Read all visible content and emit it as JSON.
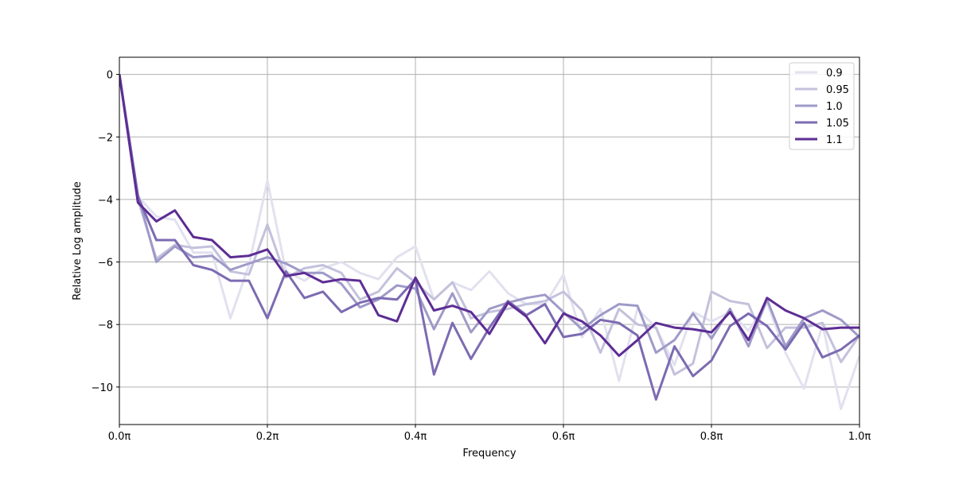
{
  "chart_data": {
    "type": "line",
    "xlabel": "Frequency",
    "ylabel": "Relative Log amplitude",
    "xlim": [
      0,
      1
    ],
    "ylim": [
      -11.2,
      0.55
    ],
    "xticks": [
      0,
      0.2,
      0.4,
      0.6,
      0.8,
      1.0
    ],
    "xtick_labels": [
      "0.0π",
      "0.2π",
      "0.4π",
      "0.6π",
      "0.8π",
      "1.0π"
    ],
    "yticks": [
      0,
      -2,
      -4,
      -6,
      -8,
      -10
    ],
    "ytick_labels": [
      "0",
      "−2",
      "−4",
      "−6",
      "−8",
      "−10"
    ],
    "grid": true,
    "legend_position": "top-right",
    "x": [
      0,
      0.025,
      0.05,
      0.075,
      0.1,
      0.125,
      0.15,
      0.175,
      0.2,
      0.225,
      0.25,
      0.275,
      0.3,
      0.325,
      0.35,
      0.375,
      0.4,
      0.425,
      0.45,
      0.475,
      0.5,
      0.525,
      0.55,
      0.575,
      0.6,
      0.625,
      0.65,
      0.675,
      0.7,
      0.725,
      0.75,
      0.775,
      0.8,
      0.825,
      0.85,
      0.875,
      0.9,
      0.925,
      0.95,
      0.975,
      1.0
    ],
    "series": [
      {
        "name": "0.9",
        "color": "#e2e1ef",
        "values": [
          0,
          -3.9,
          -4.55,
          -4.65,
          -5.7,
          -5.7,
          -7.8,
          -6.1,
          -3.4,
          -6.3,
          -6.6,
          -6.2,
          -6.0,
          -6.35,
          -6.55,
          -5.85,
          -5.5,
          -7.2,
          -6.65,
          -6.9,
          -6.3,
          -7.0,
          -7.35,
          -7.35,
          -6.4,
          -8.4,
          -7.5,
          -9.8,
          -7.5,
          -8.1,
          -9.3,
          -7.6,
          -7.9,
          -7.6,
          -8.2,
          -7.3,
          -8.9,
          -10.05,
          -8.0,
          -10.7,
          -9.0
        ]
      },
      {
        "name": "0.95",
        "color": "#c3c1dc",
        "values": [
          0,
          -4.0,
          -5.9,
          -5.45,
          -5.55,
          -5.5,
          -6.3,
          -6.4,
          -4.8,
          -6.5,
          -6.2,
          -6.1,
          -6.35,
          -7.2,
          -6.95,
          -6.2,
          -6.65,
          -7.2,
          -6.65,
          -7.8,
          -7.6,
          -7.5,
          -7.35,
          -7.25,
          -6.95,
          -7.55,
          -8.9,
          -7.5,
          -8.0,
          -8.1,
          -9.6,
          -9.25,
          -6.95,
          -7.25,
          -7.35,
          -8.75,
          -8.1,
          -8.1,
          -7.95,
          -9.2,
          -8.35
        ]
      },
      {
        "name": "1.0",
        "color": "#9e9ac8",
        "values": [
          0,
          -3.85,
          -6.0,
          -5.5,
          -5.85,
          -5.8,
          -6.25,
          -6.05,
          -5.85,
          -6.05,
          -6.35,
          -6.35,
          -6.7,
          -7.45,
          -7.2,
          -6.75,
          -6.85,
          -8.15,
          -7.0,
          -8.25,
          -7.5,
          -7.3,
          -7.15,
          -7.05,
          -7.6,
          -8.15,
          -7.7,
          -7.35,
          -7.4,
          -8.9,
          -8.5,
          -7.65,
          -8.45,
          -7.5,
          -8.7,
          -7.2,
          -8.7,
          -7.8,
          -7.55,
          -7.85,
          -8.4
        ]
      },
      {
        "name": "1.05",
        "color": "#7c6bb2",
        "values": [
          0,
          -3.9,
          -5.3,
          -5.3,
          -6.1,
          -6.25,
          -6.6,
          -6.6,
          -7.8,
          -6.3,
          -7.15,
          -6.95,
          -7.6,
          -7.3,
          -7.15,
          -7.2,
          -6.55,
          -9.6,
          -7.95,
          -9.1,
          -8.1,
          -7.25,
          -7.7,
          -7.35,
          -8.4,
          -8.3,
          -7.85,
          -7.95,
          -8.35,
          -10.4,
          -8.7,
          -9.65,
          -9.15,
          -8.05,
          -7.65,
          -8.05,
          -8.8,
          -7.95,
          -9.05,
          -8.8,
          -8.35
        ]
      },
      {
        "name": "1.1",
        "color": "#5d2d94",
        "values": [
          0,
          -4.1,
          -4.7,
          -4.35,
          -5.2,
          -5.3,
          -5.85,
          -5.8,
          -5.6,
          -6.45,
          -6.35,
          -6.65,
          -6.55,
          -6.6,
          -7.7,
          -7.9,
          -6.5,
          -7.55,
          -7.4,
          -7.6,
          -8.3,
          -7.3,
          -7.75,
          -8.6,
          -7.65,
          -7.9,
          -8.35,
          -9.0,
          -8.5,
          -7.95,
          -8.1,
          -8.15,
          -8.25,
          -7.6,
          -8.5,
          -7.15,
          -7.55,
          -7.8,
          -8.15,
          -8.1,
          -8.1
        ]
      }
    ]
  }
}
